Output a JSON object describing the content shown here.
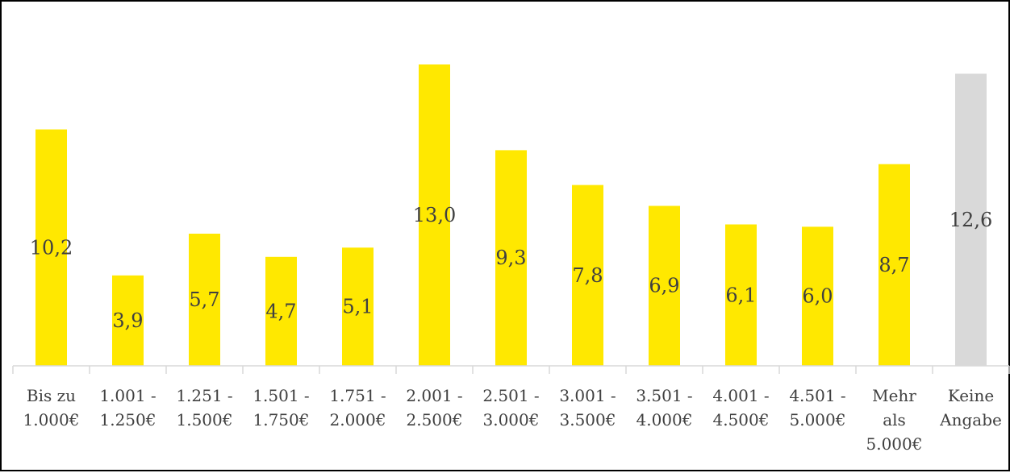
{
  "chart_data": {
    "type": "bar",
    "categories": [
      [
        "Bis zu",
        "1.000€"
      ],
      [
        "1.001 -",
        "1.250€"
      ],
      [
        "1.251 -",
        "1.500€"
      ],
      [
        "1.501 -",
        "1.750€"
      ],
      [
        "1.751 -",
        "2.000€"
      ],
      [
        "2.001 -",
        "2.500€"
      ],
      [
        "2.501 -",
        "3.000€"
      ],
      [
        "3.001 -",
        "3.500€"
      ],
      [
        "3.501 -",
        "4.000€"
      ],
      [
        "4.001 -",
        "4.500€"
      ],
      [
        "4.501 -",
        "5.000€"
      ],
      [
        "Mehr",
        "als",
        "5.000€"
      ],
      [
        "Keine",
        "Angabe"
      ]
    ],
    "values": [
      10.2,
      3.9,
      5.7,
      4.7,
      5.1,
      13.0,
      9.3,
      7.8,
      6.9,
      6.1,
      6.0,
      8.7,
      12.6
    ],
    "data_labels": [
      "10,2",
      "3,9",
      "5,7",
      "4,7",
      "5,1",
      "13,0",
      "9,3",
      "7,8",
      "6,9",
      "6,1",
      "6,0",
      "8,7",
      "12,6"
    ],
    "colors": [
      "#FFE800",
      "#FFE800",
      "#FFE800",
      "#FFE800",
      "#FFE800",
      "#FFE800",
      "#FFE800",
      "#FFE800",
      "#FFE800",
      "#FFE800",
      "#FFE800",
      "#FFE800",
      "#D9D9D9"
    ],
    "ylim": [
      0,
      13.0
    ],
    "grid": false,
    "legend": "none"
  }
}
